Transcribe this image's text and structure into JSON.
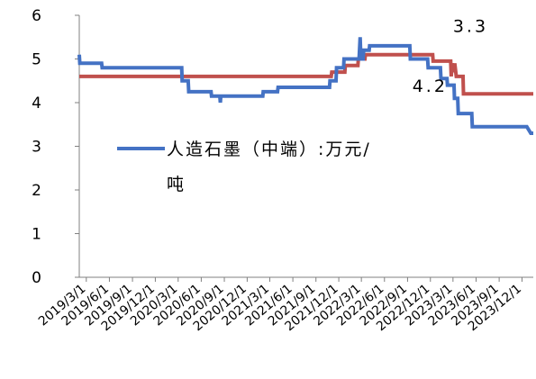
{
  "chart_data": {
    "type": "line",
    "xlim": [
      "2019-02-01",
      "2024-01-15"
    ],
    "ylim": [
      0,
      6
    ],
    "yticks": [
      0,
      1,
      2,
      3,
      4,
      5,
      6
    ],
    "xticks": [
      "2019/3/1",
      "2019/6/1",
      "2019/9/1",
      "2019/12/1",
      "2020/3/1",
      "2020/6/1",
      "2020/9/1",
      "2020/12/1",
      "2021/3/1",
      "2021/6/1",
      "2021/9/1",
      "2021/12/1",
      "2022/3/1",
      "2022/6/1",
      "2022/9/1",
      "2022/12/1",
      "2023/3/1",
      "2023/6/1",
      "2023/9/1",
      "2023/12/1"
    ],
    "grid": false,
    "legend_position": "center",
    "series": [
      {
        "name": "人造石墨（中端）:万元/吨",
        "color": "#4472c4",
        "points": [
          [
            "2019-02-01",
            5.1
          ],
          [
            "2019-02-03",
            4.9
          ],
          [
            "2019-05-01",
            4.9
          ],
          [
            "2019-05-03",
            4.8
          ],
          [
            "2020-03-15",
            4.8
          ],
          [
            "2020-03-17",
            4.5
          ],
          [
            "2020-04-10",
            4.5
          ],
          [
            "2020-04-12",
            4.25
          ],
          [
            "2020-07-10",
            4.25
          ],
          [
            "2020-07-12",
            4.15
          ],
          [
            "2020-08-14",
            4.15
          ],
          [
            "2020-08-16",
            4.0
          ],
          [
            "2020-08-18",
            4.15
          ],
          [
            "2021-02-01",
            4.15
          ],
          [
            "2021-02-03",
            4.25
          ],
          [
            "2021-04-01",
            4.25
          ],
          [
            "2021-04-03",
            4.35
          ],
          [
            "2021-10-25",
            4.35
          ],
          [
            "2021-10-27",
            4.5
          ],
          [
            "2021-11-20",
            4.5
          ],
          [
            "2021-11-22",
            4.8
          ],
          [
            "2021-12-20",
            4.8
          ],
          [
            "2021-12-22",
            5.0
          ],
          [
            "2022-02-20",
            5.0
          ],
          [
            "2022-02-24",
            5.5
          ],
          [
            "2022-02-27",
            5.0
          ],
          [
            "2022-03-08",
            5.0
          ],
          [
            "2022-03-10",
            5.2
          ],
          [
            "2022-04-01",
            5.2
          ],
          [
            "2022-04-03",
            5.3
          ],
          [
            "2022-09-10",
            5.3
          ],
          [
            "2022-09-12",
            5.0
          ],
          [
            "2022-11-20",
            5.0
          ],
          [
            "2022-11-22",
            4.8
          ],
          [
            "2023-01-10",
            4.8
          ],
          [
            "2023-01-12",
            4.55
          ],
          [
            "2023-02-05",
            4.55
          ],
          [
            "2023-02-07",
            4.4
          ],
          [
            "2023-03-05",
            4.4
          ],
          [
            "2023-03-07",
            4.1
          ],
          [
            "2023-03-20",
            4.1
          ],
          [
            "2023-03-22",
            3.75
          ],
          [
            "2023-05-15",
            3.75
          ],
          [
            "2023-05-17",
            3.45
          ],
          [
            "2023-12-20",
            3.45
          ],
          [
            "2024-01-05",
            3.3
          ],
          [
            "2024-01-15",
            3.3
          ]
        ]
      },
      {
        "name": "",
        "color": "#c0504d",
        "points": [
          [
            "2019-02-01",
            4.6
          ],
          [
            "2021-11-01",
            4.6
          ],
          [
            "2021-11-03",
            4.7
          ],
          [
            "2021-12-25",
            4.7
          ],
          [
            "2021-12-27",
            4.85
          ],
          [
            "2022-02-15",
            4.85
          ],
          [
            "2022-02-17",
            5.0
          ],
          [
            "2022-03-15",
            5.0
          ],
          [
            "2022-03-17",
            5.1
          ],
          [
            "2022-12-10",
            5.1
          ],
          [
            "2022-12-12",
            4.95
          ],
          [
            "2023-02-20",
            4.95
          ],
          [
            "2023-02-22",
            4.6
          ],
          [
            "2023-02-26",
            4.9
          ],
          [
            "2023-03-04",
            4.7
          ],
          [
            "2023-03-08",
            4.9
          ],
          [
            "2023-03-14",
            4.6
          ],
          [
            "2023-04-10",
            4.6
          ],
          [
            "2023-04-12",
            4.2
          ],
          [
            "2024-01-15",
            4.2
          ]
        ]
      }
    ],
    "annotations": [
      {
        "text": "3.3",
        "x": "2023-03-01",
        "y": 5.62
      },
      {
        "text": "4.2",
        "x": "2022-09-20",
        "y": 4.25
      }
    ]
  }
}
